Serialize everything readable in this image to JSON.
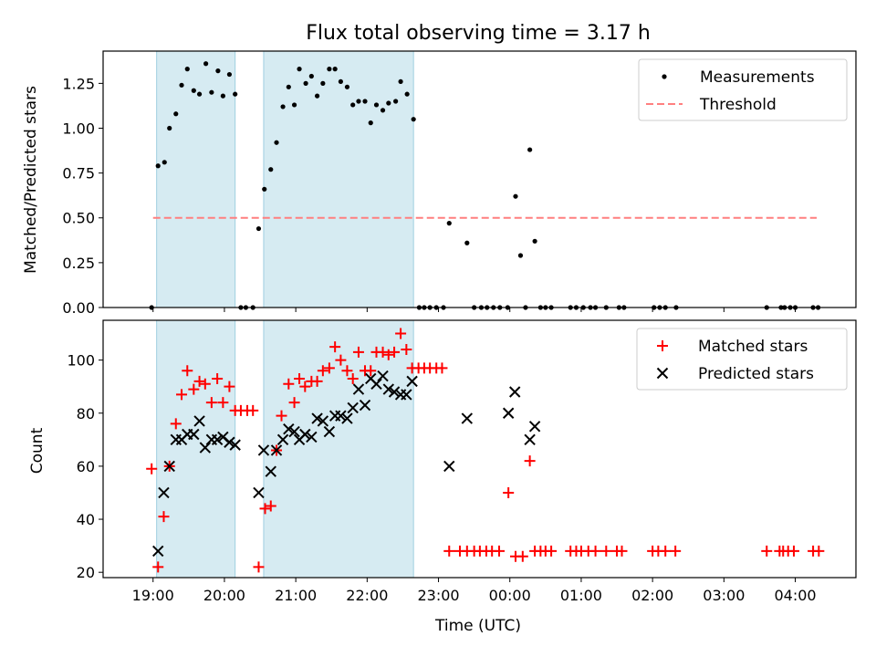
{
  "chart_data": [
    {
      "type": "scatter",
      "title": "Flux total observing time = 3.17 h",
      "xlabel": "",
      "ylabel": "Matched/Predicted stars",
      "xlim": [
        18.3,
        28.85
      ],
      "ylim": [
        0.0,
        1.43
      ],
      "yticks": [
        0.0,
        0.25,
        0.5,
        0.75,
        1.0,
        1.25
      ],
      "ytick_labels": [
        "0.00",
        "0.25",
        "0.50",
        "0.75",
        "1.00",
        "1.25"
      ],
      "shaded_spans": [
        [
          19.05,
          20.15
        ],
        [
          20.55,
          22.65
        ]
      ],
      "legend": [
        "Measurements",
        "Threshold"
      ],
      "threshold": {
        "value": 0.5,
        "x_from": 19.0,
        "x_to": 28.3
      },
      "series": [
        {
          "name": "Measurements",
          "points": [
            [
              18.98,
              0.0
            ],
            [
              19.07,
              0.79
            ],
            [
              19.16,
              0.81
            ],
            [
              19.23,
              1.0
            ],
            [
              19.32,
              1.08
            ],
            [
              19.4,
              1.24
            ],
            [
              19.48,
              1.33
            ],
            [
              19.57,
              1.21
            ],
            [
              19.65,
              1.19
            ],
            [
              19.74,
              1.36
            ],
            [
              19.82,
              1.2
            ],
            [
              19.91,
              1.32
            ],
            [
              19.98,
              1.18
            ],
            [
              20.07,
              1.3
            ],
            [
              20.15,
              1.19
            ],
            [
              20.23,
              0.0
            ],
            [
              20.3,
              0.0
            ],
            [
              20.4,
              0.0
            ],
            [
              20.48,
              0.44
            ],
            [
              20.56,
              0.66
            ],
            [
              20.65,
              0.77
            ],
            [
              20.73,
              0.92
            ],
            [
              20.82,
              1.12
            ],
            [
              20.9,
              1.23
            ],
            [
              20.98,
              1.13
            ],
            [
              21.05,
              1.33
            ],
            [
              21.14,
              1.25
            ],
            [
              21.22,
              1.29
            ],
            [
              21.3,
              1.18
            ],
            [
              21.38,
              1.25
            ],
            [
              21.47,
              1.33
            ],
            [
              21.55,
              1.33
            ],
            [
              21.63,
              1.26
            ],
            [
              21.72,
              1.23
            ],
            [
              21.8,
              1.13
            ],
            [
              21.88,
              1.15
            ],
            [
              21.97,
              1.15
            ],
            [
              22.05,
              1.03
            ],
            [
              22.13,
              1.13
            ],
            [
              22.22,
              1.1
            ],
            [
              22.3,
              1.14
            ],
            [
              22.4,
              1.15
            ],
            [
              22.47,
              1.26
            ],
            [
              22.56,
              1.19
            ],
            [
              22.65,
              1.05
            ],
            [
              22.73,
              0.0
            ],
            [
              22.8,
              0.0
            ],
            [
              22.88,
              0.0
            ],
            [
              22.97,
              0.0
            ],
            [
              23.07,
              0.0
            ],
            [
              23.15,
              0.47
            ],
            [
              23.4,
              0.36
            ],
            [
              23.5,
              0.0
            ],
            [
              23.6,
              0.0
            ],
            [
              23.68,
              0.0
            ],
            [
              23.77,
              0.0
            ],
            [
              23.86,
              0.0
            ],
            [
              23.97,
              0.0
            ],
            [
              24.08,
              0.62
            ],
            [
              24.15,
              0.29
            ],
            [
              24.22,
              0.0
            ],
            [
              24.28,
              0.88
            ],
            [
              24.35,
              0.37
            ],
            [
              24.43,
              0.0
            ],
            [
              24.5,
              0.0
            ],
            [
              24.58,
              0.0
            ],
            [
              24.85,
              0.0
            ],
            [
              24.93,
              0.0
            ],
            [
              25.03,
              0.0
            ],
            [
              25.13,
              0.0
            ],
            [
              25.2,
              0.0
            ],
            [
              25.35,
              0.0
            ],
            [
              25.53,
              0.0
            ],
            [
              25.6,
              0.0
            ],
            [
              26.02,
              0.0
            ],
            [
              26.1,
              0.0
            ],
            [
              26.18,
              0.0
            ],
            [
              26.33,
              0.0
            ],
            [
              27.6,
              0.0
            ],
            [
              27.8,
              0.0
            ],
            [
              27.85,
              0.0
            ],
            [
              27.93,
              0.0
            ],
            [
              28.0,
              0.0
            ],
            [
              28.25,
              0.0
            ],
            [
              28.32,
              0.0
            ]
          ]
        }
      ]
    },
    {
      "type": "scatter",
      "title": "",
      "xlabel": "Time (UTC)",
      "ylabel": "Count",
      "xlim": [
        18.3,
        28.85
      ],
      "ylim": [
        18,
        115
      ],
      "xticks": [
        19,
        20,
        21,
        22,
        23,
        24,
        25,
        26,
        27,
        28
      ],
      "xtick_labels": [
        "19:00",
        "20:00",
        "21:00",
        "22:00",
        "23:00",
        "00:00",
        "01:00",
        "02:00",
        "03:00",
        "04:00"
      ],
      "yticks": [
        20,
        40,
        60,
        80,
        100
      ],
      "ytick_labels": [
        "20",
        "40",
        "60",
        "80",
        "100"
      ],
      "shaded_spans": [
        [
          19.05,
          20.15
        ],
        [
          20.55,
          22.65
        ]
      ],
      "legend": [
        "Matched stars",
        "Predicted stars"
      ],
      "series": [
        {
          "name": "Matched stars",
          "points": [
            [
              18.98,
              59
            ],
            [
              19.07,
              22
            ],
            [
              19.15,
              41
            ],
            [
              19.23,
              60
            ],
            [
              19.32,
              76
            ],
            [
              19.4,
              87
            ],
            [
              19.48,
              96
            ],
            [
              19.57,
              89
            ],
            [
              19.65,
              92
            ],
            [
              19.73,
              91
            ],
            [
              19.82,
              84
            ],
            [
              19.9,
              93
            ],
            [
              19.98,
              84
            ],
            [
              20.07,
              90
            ],
            [
              20.15,
              81
            ],
            [
              20.23,
              81
            ],
            [
              20.32,
              81
            ],
            [
              20.4,
              81
            ],
            [
              20.48,
              22
            ],
            [
              20.57,
              44
            ],
            [
              20.65,
              45
            ],
            [
              20.73,
              66
            ],
            [
              20.8,
              79
            ],
            [
              20.9,
              91
            ],
            [
              20.98,
              84
            ],
            [
              21.05,
              93
            ],
            [
              21.13,
              90
            ],
            [
              21.22,
              92
            ],
            [
              21.3,
              92
            ],
            [
              21.38,
              96
            ],
            [
              21.47,
              97
            ],
            [
              21.55,
              105
            ],
            [
              21.63,
              100
            ],
            [
              21.72,
              96
            ],
            [
              21.8,
              93
            ],
            [
              21.88,
              103
            ],
            [
              21.97,
              96
            ],
            [
              22.05,
              96
            ],
            [
              22.13,
              103
            ],
            [
              22.22,
              103
            ],
            [
              22.3,
              102
            ],
            [
              22.38,
              103
            ],
            [
              22.47,
              110
            ],
            [
              22.55,
              104
            ],
            [
              22.63,
              97
            ],
            [
              22.72,
              97
            ],
            [
              22.8,
              97
            ],
            [
              22.88,
              97
            ],
            [
              22.97,
              97
            ],
            [
              23.05,
              97
            ],
            [
              23.15,
              28
            ],
            [
              23.3,
              28
            ],
            [
              23.4,
              28
            ],
            [
              23.5,
              28
            ],
            [
              23.58,
              28
            ],
            [
              23.67,
              28
            ],
            [
              23.75,
              28
            ],
            [
              23.85,
              28
            ],
            [
              23.98,
              50
            ],
            [
              24.08,
              26
            ],
            [
              24.18,
              26
            ],
            [
              24.28,
              62
            ],
            [
              24.35,
              28
            ],
            [
              24.43,
              28
            ],
            [
              24.5,
              28
            ],
            [
              24.58,
              28
            ],
            [
              24.85,
              28
            ],
            [
              24.93,
              28
            ],
            [
              25.0,
              28
            ],
            [
              25.1,
              28
            ],
            [
              25.2,
              28
            ],
            [
              25.35,
              28
            ],
            [
              25.5,
              28
            ],
            [
              25.57,
              28
            ],
            [
              26.0,
              28
            ],
            [
              26.08,
              28
            ],
            [
              26.18,
              28
            ],
            [
              26.32,
              28
            ],
            [
              27.6,
              28
            ],
            [
              27.78,
              28
            ],
            [
              27.83,
              28
            ],
            [
              27.9,
              28
            ],
            [
              27.98,
              28
            ],
            [
              28.25,
              28
            ],
            [
              28.33,
              28
            ]
          ]
        },
        {
          "name": "Predicted stars",
          "points": [
            [
              19.07,
              28
            ],
            [
              19.15,
              50
            ],
            [
              19.23,
              60
            ],
            [
              19.32,
              70
            ],
            [
              19.4,
              70
            ],
            [
              19.48,
              72
            ],
            [
              19.57,
              72
            ],
            [
              19.65,
              77
            ],
            [
              19.73,
              67
            ],
            [
              19.82,
              70
            ],
            [
              19.9,
              70
            ],
            [
              19.98,
              71
            ],
            [
              20.07,
              69
            ],
            [
              20.15,
              68
            ],
            [
              20.48,
              50
            ],
            [
              20.55,
              66
            ],
            [
              20.65,
              58
            ],
            [
              20.73,
              66
            ],
            [
              20.82,
              70
            ],
            [
              20.9,
              74
            ],
            [
              20.98,
              73
            ],
            [
              21.05,
              70
            ],
            [
              21.13,
              72
            ],
            [
              21.22,
              71
            ],
            [
              21.3,
              78
            ],
            [
              21.38,
              77
            ],
            [
              21.47,
              73
            ],
            [
              21.55,
              79
            ],
            [
              21.63,
              79
            ],
            [
              21.72,
              78
            ],
            [
              21.8,
              82
            ],
            [
              21.88,
              89
            ],
            [
              21.97,
              83
            ],
            [
              22.05,
              93
            ],
            [
              22.13,
              91
            ],
            [
              22.22,
              94
            ],
            [
              22.3,
              89
            ],
            [
              22.38,
              88
            ],
            [
              22.47,
              87
            ],
            [
              22.55,
              87
            ],
            [
              22.63,
              92
            ],
            [
              23.15,
              60
            ],
            [
              23.4,
              78
            ],
            [
              23.98,
              80
            ],
            [
              24.07,
              88
            ],
            [
              24.28,
              70
            ],
            [
              24.35,
              75
            ]
          ]
        }
      ]
    }
  ]
}
